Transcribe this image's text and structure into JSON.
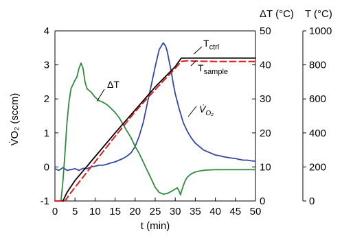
{
  "chart_data": {
    "type": "line",
    "xlabel": "t (min)",
    "x_ticks": [
      "0",
      "5",
      "10",
      "15",
      "20",
      "25",
      "30",
      "35",
      "40",
      "45",
      "50"
    ],
    "xlim": [
      0,
      50
    ],
    "axes": {
      "vo2": {
        "label": "V̇O₂ (sccm)",
        "ylim": [
          -1,
          4
        ],
        "ticks": [
          "-1",
          "0",
          "1",
          "2",
          "3",
          "4"
        ]
      },
      "dT": {
        "label": "ΔT (°C)",
        "ylim": [
          0,
          50
        ],
        "ticks": [
          "0",
          "10",
          "20",
          "30",
          "40",
          "50"
        ]
      },
      "T": {
        "label": "T (°C)",
        "ylim": [
          0,
          1000
        ],
        "ticks": [
          "0",
          "200",
          "400",
          "600",
          "800",
          "1000"
        ]
      }
    },
    "series": [
      {
        "name": "V̇O₂",
        "axis": "vo2",
        "color": "#3346a8",
        "style": "solid",
        "x": [
          0,
          1,
          2,
          3,
          4,
          5,
          6,
          7,
          8,
          9,
          10,
          11,
          12,
          13,
          14,
          15,
          16,
          17,
          18,
          19,
          20,
          21,
          22,
          23,
          24,
          25,
          25.5,
          26,
          26.5,
          27,
          27.3,
          27.6,
          28,
          28.5,
          29,
          29.5,
          30,
          31,
          32,
          33,
          34,
          35,
          36,
          37,
          38,
          39,
          40,
          41,
          42,
          43,
          44,
          45,
          46,
          47,
          48,
          49,
          50
        ],
        "y": [
          -0.05,
          -0.1,
          -0.02,
          -0.1,
          -0.08,
          -0.05,
          -0.1,
          -0.04,
          -0.05,
          0.0,
          0.02,
          0.05,
          0.05,
          0.08,
          0.12,
          0.15,
          0.2,
          0.25,
          0.32,
          0.42,
          0.6,
          0.9,
          1.3,
          1.85,
          2.4,
          2.95,
          3.2,
          3.45,
          3.55,
          3.65,
          3.6,
          3.55,
          3.4,
          3.1,
          2.8,
          2.45,
          2.15,
          1.7,
          1.3,
          1.05,
          0.85,
          0.7,
          0.6,
          0.5,
          0.45,
          0.4,
          0.35,
          0.33,
          0.3,
          0.28,
          0.26,
          0.25,
          0.22,
          0.2,
          0.2,
          0.18,
          0.17
        ]
      },
      {
        "name": "ΔT",
        "axis": "dT",
        "color": "#2e8b3e",
        "style": "solid",
        "x": [
          0,
          1.5,
          2,
          2.5,
          3,
          3.5,
          4,
          5,
          5.5,
          6,
          6.5,
          7,
          7.5,
          8,
          9,
          10,
          11,
          12,
          13,
          14,
          15,
          16,
          17,
          18,
          19,
          20,
          21,
          22,
          23,
          24,
          25,
          26,
          27,
          28,
          29,
          30,
          30.5,
          31,
          31.3,
          31.6,
          32,
          32.5,
          33,
          34,
          35,
          36,
          37,
          38,
          40,
          42,
          44,
          46,
          48,
          50
        ],
        "y": [
          0,
          0,
          6,
          14,
          23,
          29,
          33,
          35.5,
          36.5,
          39,
          40.5,
          39,
          35,
          33,
          32,
          30.5,
          29.5,
          29,
          28.3,
          27.2,
          26,
          24.5,
          22.5,
          20.5,
          18.5,
          16,
          14,
          11.5,
          9,
          6.5,
          4,
          2.5,
          2,
          2.2,
          2.8,
          3.5,
          3.9,
          2.8,
          1.8,
          3,
          4.5,
          6,
          7,
          8,
          8.5,
          8.8,
          9,
          9.1,
          9.2,
          9.2,
          9.2,
          9.2,
          9.2,
          9.2
        ]
      },
      {
        "name": "T_ctrl",
        "axis": "T",
        "color": "#000000",
        "style": "solid",
        "x": [
          0,
          2,
          3,
          5,
          10,
          15,
          20,
          25,
          30,
          31.5,
          35,
          40,
          45,
          50
        ],
        "y": [
          0,
          0,
          50,
          120,
          260,
          400,
          535,
          670,
          790,
          840,
          840,
          840,
          840,
          840
        ]
      },
      {
        "name": "T_sample",
        "axis": "T",
        "color": "#e41a1c",
        "style": "dashed",
        "x": [
          0,
          2.5,
          4,
          6,
          10,
          15,
          20,
          25,
          28,
          30,
          31.5,
          33,
          35,
          40,
          45,
          50
        ],
        "y": [
          0,
          0,
          50,
          110,
          230,
          380,
          525,
          655,
          730,
          780,
          820,
          824,
          822,
          820,
          820,
          820
        ]
      }
    ],
    "annotations": {
      "dT_label": "ΔT",
      "tctrl": {
        "main": "T",
        "sub": "ctrl"
      },
      "tsample": {
        "main": "T",
        "sub": "sample"
      },
      "vo2_curve": {
        "main": "V̇",
        "sub": "O₂"
      }
    }
  }
}
